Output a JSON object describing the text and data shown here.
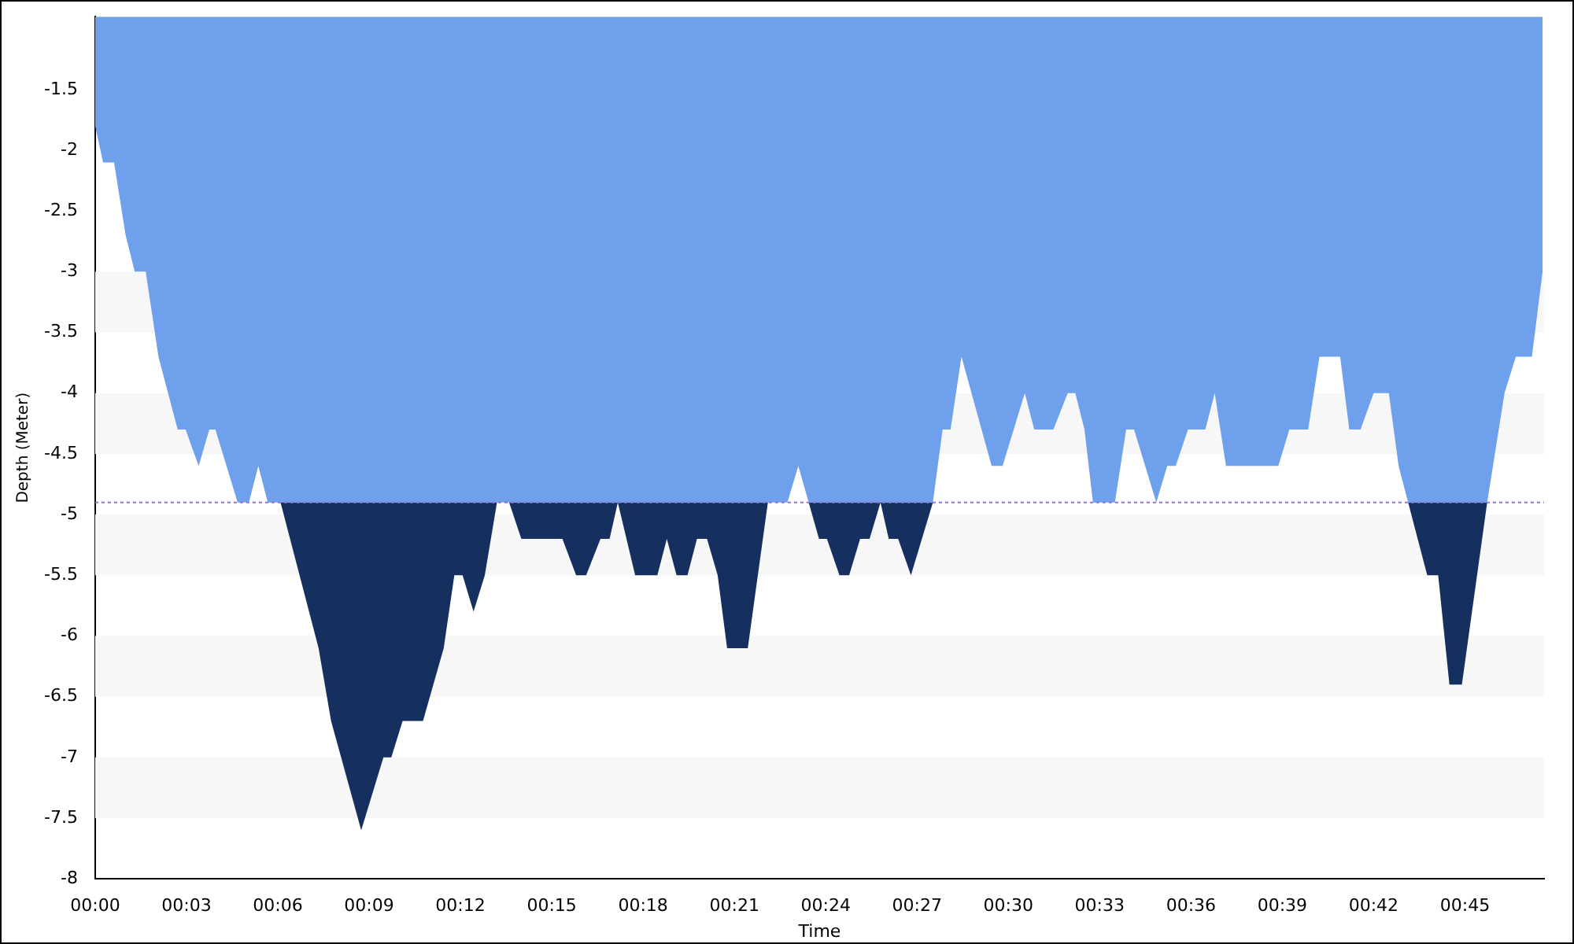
{
  "chart_data": {
    "type": "area",
    "xlabel": "Time",
    "ylabel": "Depth (Meter)",
    "xlim": [
      0,
      47.6
    ],
    "ylim": [
      -8,
      -0.9
    ],
    "xticks": [
      {
        "value": 0,
        "label": "00:00"
      },
      {
        "value": 3,
        "label": "00:03"
      },
      {
        "value": 6,
        "label": "00:06"
      },
      {
        "value": 9,
        "label": "00:09"
      },
      {
        "value": 12,
        "label": "00:12"
      },
      {
        "value": 15,
        "label": "00:15"
      },
      {
        "value": 18,
        "label": "00:18"
      },
      {
        "value": 21,
        "label": "00:21"
      },
      {
        "value": 24,
        "label": "00:24"
      },
      {
        "value": 27,
        "label": "00:27"
      },
      {
        "value": 30,
        "label": "00:30"
      },
      {
        "value": 33,
        "label": "00:33"
      },
      {
        "value": 36,
        "label": "00:36"
      },
      {
        "value": 39,
        "label": "00:39"
      },
      {
        "value": 42,
        "label": "00:42"
      },
      {
        "value": 45,
        "label": "00:45"
      }
    ],
    "yticks": [
      -8,
      -7.5,
      -7,
      -6.5,
      -6,
      -5.5,
      -5,
      -4.5,
      -4,
      -3.5,
      -3,
      -2.5,
      -2,
      -1.5
    ],
    "legend": false,
    "x": [
      0,
      0.26,
      0.62,
      1.0,
      1.3,
      1.66,
      2.08,
      2.71,
      2.97,
      3.4,
      3.75,
      3.95,
      4.68,
      5.05,
      5.36,
      5.67,
      6.09,
      7.34,
      7.75,
      8.74,
      9.47,
      9.73,
      10.1,
      10.77,
      11.45,
      11.8,
      12.07,
      12.43,
      12.8,
      13.2,
      13.6,
      14.0,
      15.35,
      15.8,
      16.13,
      16.6,
      16.9,
      17.17,
      17.74,
      18.47,
      18.78,
      19.1,
      19.46,
      19.77,
      20.1,
      20.45,
      20.76,
      21.44,
      22.1,
      22.74,
      23.1,
      23.78,
      24.04,
      24.45,
      24.77,
      25.13,
      25.44,
      25.8,
      26.07,
      26.38,
      26.8,
      27.52,
      27.84,
      28.1,
      28.46,
      29.45,
      29.81,
      30.54,
      30.85,
      31.48,
      31.95,
      32.2,
      32.5,
      32.78,
      33.5,
      33.87,
      34.13,
      34.86,
      35.22,
      35.5,
      35.9,
      36.47,
      36.78,
      37.15,
      38.87,
      39.23,
      39.85,
      40.22,
      40.9,
      41.2,
      41.57,
      42.0,
      42.5,
      42.82,
      43.76,
      44.12,
      44.49,
      44.9,
      45.73,
      46.3,
      46.67,
      47.2,
      47.55
    ],
    "series": [
      {
        "colors": [
          "#6fa0ec",
          "#6fa0ec",
          "#6fa0ec",
          "#6fa0ec",
          "#6fa0ec",
          "#6fa0ec",
          "#6fa0ec",
          "#6fa0ec",
          "#6fa0ec",
          "#6fa0ec",
          "#6fa0ec",
          "#6fa0ec",
          "#6fa0ec",
          "#6fa0ec",
          "#6fa0ec",
          "#6fa0ec",
          "#6fa0ec",
          "#15305e",
          "#15305e",
          "#15305e",
          "#15305e",
          "#15305e",
          "#15305e",
          "#15305e",
          "#15305e",
          "#15305e",
          "#15305e",
          "#15305e",
          "#15305e",
          "#6fa0ec",
          "#6fa0ec",
          "#15305e",
          "#15305e",
          "#15305e",
          "#15305e",
          "#15305e",
          "#15305e",
          "#6fa0ec",
          "#15305e",
          "#15305e",
          "#15305e",
          "#15305e",
          "#15305e",
          "#15305e",
          "#15305e",
          "#15305e",
          "#15305e",
          "#15305e",
          "#6fa0ec",
          "#6fa0ec",
          "#6fa0ec",
          "#15305e",
          "#15305e",
          "#15305e",
          "#15305e",
          "#15305e",
          "#15305e",
          "#6fa0ec",
          "#15305e",
          "#15305e",
          "#15305e",
          "#6fa0ec",
          "#6fa0ec",
          "#6fa0ec",
          "#6fa0ec",
          "#6fa0ec",
          "#6fa0ec",
          "#6fa0ec",
          "#6fa0ec",
          "#6fa0ec",
          "#6fa0ec",
          "#6fa0ec",
          "#6fa0ec",
          "#6fa0ec",
          "#6fa0ec",
          "#6fa0ec",
          "#6fa0ec",
          "#6fa0ec",
          "#6fa0ec",
          "#6fa0ec",
          "#6fa0ec",
          "#6fa0ec",
          "#6fa0ec",
          "#6fa0ec",
          "#6fa0ec",
          "#6fa0ec",
          "#6fa0ec",
          "#6fa0ec",
          "#6fa0ec",
          "#6fa0ec",
          "#6fa0ec",
          "#6fa0ec",
          "#6fa0ec",
          "#6fa0ec",
          "#15305e",
          "#15305e",
          "#15305e",
          "#15305e",
          "#6fa0ec",
          "#6fa0ec",
          "#6fa0ec",
          "#6fa0ec",
          "#6fa0ec"
        ],
        "values": [
          -1.8,
          -2.1,
          -2.1,
          -2.7,
          -3.0,
          -3.0,
          -3.7,
          -4.3,
          -4.3,
          -4.6,
          -4.3,
          -4.3,
          -4.9,
          -4.9,
          -4.6,
          -4.9,
          -4.9,
          -6.1,
          -6.7,
          -7.6,
          -7.0,
          -7.0,
          -6.7,
          -6.7,
          -6.1,
          -5.5,
          -5.5,
          -5.8,
          -5.5,
          -4.9,
          -4.9,
          -5.2,
          -5.2,
          -5.5,
          -5.5,
          -5.2,
          -5.2,
          -4.9,
          -5.5,
          -5.5,
          -5.2,
          -5.5,
          -5.5,
          -5.2,
          -5.2,
          -5.5,
          -6.1,
          -6.1,
          -4.9,
          -4.9,
          -4.6,
          -5.2,
          -5.2,
          -5.5,
          -5.5,
          -5.2,
          -5.2,
          -4.9,
          -5.2,
          -5.2,
          -5.5,
          -4.9,
          -4.3,
          -4.3,
          -3.7,
          -4.6,
          -4.6,
          -4.0,
          -4.3,
          -4.3,
          -4.0,
          -4.0,
          -4.3,
          -4.9,
          -4.9,
          -4.3,
          -4.3,
          -4.9,
          -4.6,
          -4.6,
          -4.3,
          -4.3,
          -4.0,
          -4.6,
          -4.6,
          -4.3,
          -4.3,
          -3.7,
          -3.7,
          -4.3,
          -4.3,
          -4.0,
          -4.0,
          -4.6,
          -5.5,
          -5.5,
          -6.4,
          -6.4,
          -4.9,
          -4.0,
          -3.7,
          -3.7,
          -3.0
        ]
      }
    ],
    "ref_lines": [
      {
        "axis": "y",
        "value": -4.9,
        "color": "#9370db",
        "line_style": "dotted"
      }
    ],
    "bands": [
      {
        "axis": "y",
        "from": -7.5,
        "to": -7,
        "color": "#f7f7f7"
      },
      {
        "axis": "y",
        "from": -6.5,
        "to": -6,
        "color": "#f7f7f7"
      },
      {
        "axis": "y",
        "from": -5.5,
        "to": -5,
        "color": "#f7f7f7"
      },
      {
        "axis": "y",
        "from": -4.5,
        "to": -4,
        "color": "#f7f7f7"
      },
      {
        "axis": "y",
        "from": -3.5,
        "to": -3,
        "color": "#f7f7f7"
      }
    ]
  }
}
